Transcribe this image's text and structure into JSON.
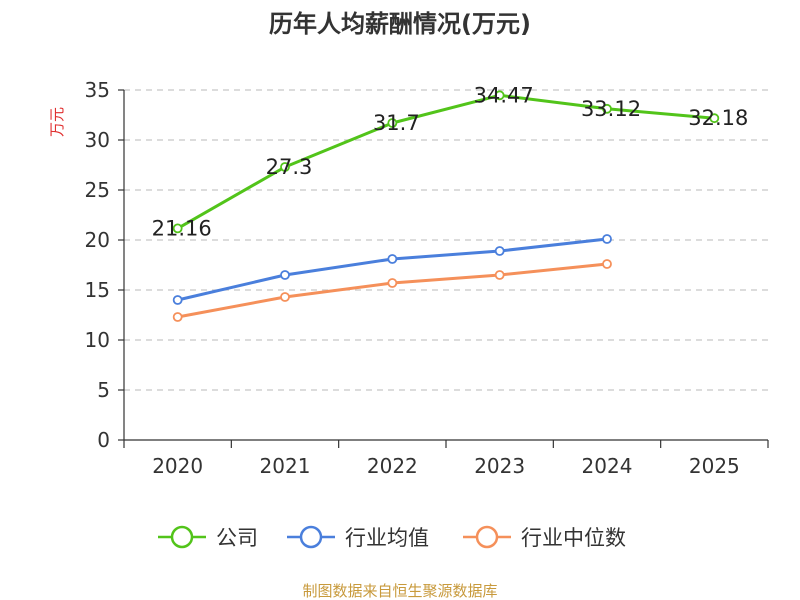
{
  "chart_data": {
    "type": "line",
    "title": "历年人均薪酬情况(万元)",
    "xlabel": "",
    "ylabel": "万元",
    "categories": [
      "2020",
      "2021",
      "2022",
      "2023",
      "2024",
      "2025"
    ],
    "ylim": [
      0,
      35
    ],
    "yticks": [
      0,
      5,
      10,
      15,
      20,
      25,
      30,
      35
    ],
    "grid": true,
    "legend_position": "bottom",
    "series": [
      {
        "name": "公司",
        "color": "#52c41a",
        "values": [
          21.16,
          27.3,
          31.7,
          34.47,
          33.12,
          32.18
        ],
        "labels": [
          "21.16",
          "27.3",
          "31.7",
          "34.47",
          "33.12",
          "32.18"
        ]
      },
      {
        "name": "行业均值",
        "color": "#4a7fdc",
        "values": [
          14.0,
          16.5,
          18.1,
          18.9,
          20.1,
          null
        ]
      },
      {
        "name": "行业中位数",
        "color": "#f5905a",
        "values": [
          12.3,
          14.3,
          15.7,
          16.5,
          17.6,
          null
        ]
      }
    ]
  },
  "source_note": "制图数据来自恒生聚源数据库"
}
